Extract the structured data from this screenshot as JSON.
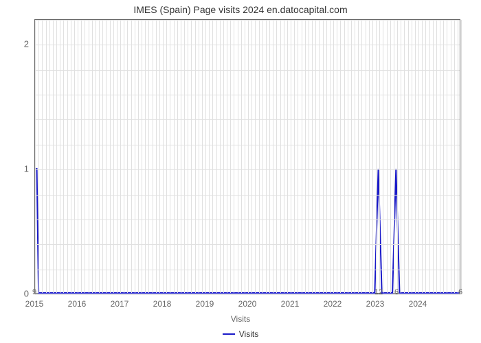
{
  "chart": {
    "type": "line",
    "title": "IMES (Spain) Page visits 2024 en.datocapital.com",
    "title_fontsize": 14,
    "title_color": "#333333",
    "background_color": "#ffffff",
    "plot_border_color": "#666666",
    "grid_color": "#e0e0e0",
    "x_label": "Visits",
    "x_label_fontsize": 12,
    "x_label_color": "#666666",
    "line_color": "#1919c8",
    "line_width": 2,
    "legend_label": "Visits",
    "legend_fontsize": 12,
    "legend_color": "#333333",
    "y": {
      "min": 0,
      "max": 2.2,
      "ticks": [
        0,
        1,
        2
      ],
      "tick_labels": [
        "0",
        "1",
        "2"
      ],
      "tick_fontsize": 13,
      "tick_color": "#666666",
      "minor_ticks_per_major": 5
    },
    "x": {
      "min": 0,
      "max": 120,
      "minor_step": 1,
      "tick_positions": [
        0,
        12,
        24,
        36,
        48,
        60,
        72,
        84,
        96,
        108,
        120
      ],
      "tick_labels": [
        "2015",
        "2016",
        "2017",
        "2018",
        "2019",
        "2020",
        "2021",
        "2022",
        "2023",
        "2024",
        ""
      ],
      "tick_fontsize": 12,
      "tick_color": "#666666"
    },
    "series": {
      "x": [
        0,
        0.5,
        1,
        2,
        95,
        96,
        97,
        98,
        99,
        100,
        101,
        102,
        103,
        104,
        105,
        106,
        107,
        108,
        109,
        110,
        120
      ],
      "y": [
        1,
        1,
        0,
        0,
        0,
        0,
        1,
        0,
        0,
        0,
        0,
        1,
        0,
        0,
        0,
        0,
        0,
        0,
        0,
        0,
        0
      ]
    },
    "data_point_labels": [
      {
        "x": 0,
        "text": "9"
      },
      {
        "x": 97,
        "text": "12"
      },
      {
        "x": 102,
        "text": "6"
      },
      {
        "x": 120,
        "text": "6"
      }
    ]
  }
}
